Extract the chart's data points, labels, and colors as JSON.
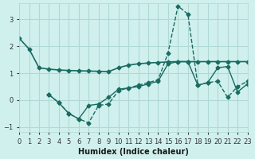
{
  "xlabel": "Humidex (Indice chaleur)",
  "ylabel": "",
  "bg_color": "#d0f0ee",
  "grid_color": "#b0d8d4",
  "line_color": "#1a6b60",
  "xlim": [
    0,
    23
  ],
  "ylim": [
    -1.2,
    3.6
  ],
  "xticks": [
    0,
    1,
    2,
    3,
    4,
    5,
    6,
    7,
    8,
    9,
    10,
    11,
    12,
    13,
    14,
    15,
    16,
    17,
    18,
    19,
    20,
    21,
    22,
    23
  ],
  "yticks": [
    -1,
    0,
    1,
    2,
    3
  ],
  "line1_x": [
    0,
    1,
    2,
    3,
    4,
    5,
    6,
    7,
    8,
    9,
    10,
    11,
    12,
    13,
    14,
    15,
    16,
    17,
    18,
    19,
    20,
    21,
    22,
    23
  ],
  "line1_y": [
    2.3,
    1.9,
    1.2,
    1.15,
    1.12,
    1.1,
    1.09,
    1.08,
    1.07,
    1.06,
    1.2,
    1.3,
    1.35,
    1.38,
    1.4,
    1.42,
    1.43,
    1.43,
    1.43,
    1.43,
    1.43,
    1.43,
    1.43,
    1.43
  ],
  "line2_x": [
    3,
    4,
    5,
    6,
    7,
    8,
    9,
    10,
    11,
    12,
    13,
    14,
    15,
    16,
    17,
    18,
    19,
    20,
    21,
    22,
    23
  ],
  "line2_y": [
    0.2,
    -0.1,
    -0.5,
    -0.7,
    -0.85,
    -0.2,
    -0.15,
    0.35,
    0.45,
    0.55,
    0.65,
    0.75,
    1.75,
    3.5,
    3.2,
    0.55,
    0.65,
    0.7,
    0.1,
    0.5,
    0.7
  ],
  "line3_x": [
    3,
    4,
    5,
    6,
    7,
    8,
    9,
    10,
    11,
    12,
    13,
    14,
    15,
    16,
    17,
    18,
    19,
    20,
    21,
    22,
    23
  ],
  "line3_y": [
    0.2,
    -0.1,
    -0.5,
    -0.7,
    -0.2,
    -0.15,
    0.1,
    0.4,
    0.45,
    0.5,
    0.6,
    0.7,
    1.35,
    1.43,
    1.43,
    0.55,
    0.65,
    1.2,
    1.25,
    0.3,
    0.6
  ]
}
